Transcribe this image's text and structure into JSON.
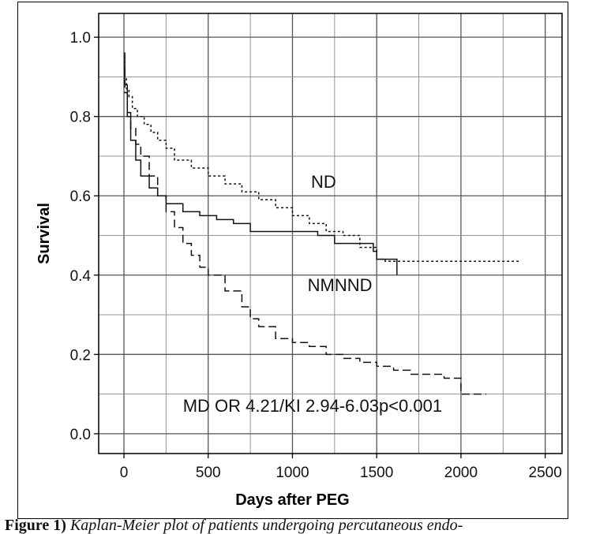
{
  "chart_data": {
    "type": "line",
    "title": "",
    "xlabel": "Days after PEG",
    "ylabel": "Survival",
    "xlim": [
      -150,
      2600
    ],
    "ylim": [
      -0.05,
      1.06
    ],
    "xticks": [
      0,
      500,
      1000,
      1500,
      2000,
      2500
    ],
    "yticks": [
      0.0,
      0.2,
      0.4,
      0.6,
      0.8,
      1.0
    ],
    "xtick_labels": [
      "0",
      "500",
      "1000",
      "1500",
      "2000",
      "2500"
    ],
    "ytick_labels": [
      "0.0",
      "0.2",
      "0.4",
      "0.6",
      "0.8",
      "1.0"
    ],
    "grid": true,
    "series": [
      {
        "name": "ND",
        "style": "dotted",
        "x": [
          0,
          5,
          15,
          30,
          50,
          80,
          120,
          160,
          200,
          250,
          300,
          400,
          500,
          600,
          700,
          800,
          900,
          1000,
          1100,
          1200,
          1300,
          1400,
          1500,
          1550,
          2350
        ],
        "y": [
          0.95,
          0.9,
          0.87,
          0.85,
          0.82,
          0.8,
          0.78,
          0.76,
          0.74,
          0.72,
          0.69,
          0.67,
          0.65,
          0.63,
          0.61,
          0.59,
          0.57,
          0.55,
          0.53,
          0.51,
          0.5,
          0.47,
          0.44,
          0.435,
          0.435
        ]
      },
      {
        "name": "NMNND",
        "style": "solid",
        "x": [
          0,
          5,
          20,
          40,
          70,
          100,
          150,
          200,
          250,
          350,
          450,
          550,
          650,
          750,
          850,
          1000,
          1150,
          1250,
          1400,
          1480,
          1500,
          1620,
          1620
        ],
        "y": [
          0.96,
          0.88,
          0.8,
          0.74,
          0.69,
          0.65,
          0.62,
          0.6,
          0.58,
          0.56,
          0.55,
          0.54,
          0.53,
          0.51,
          0.51,
          0.51,
          0.5,
          0.48,
          0.48,
          0.46,
          0.44,
          0.44,
          0.4
        ]
      },
      {
        "name": "MD",
        "style": "dashed",
        "x": [
          0,
          5,
          20,
          40,
          70,
          100,
          150,
          200,
          250,
          300,
          350,
          400,
          450,
          500,
          600,
          700,
          750,
          800,
          900,
          1000,
          1100,
          1200,
          1300,
          1400,
          1500,
          1600,
          1700,
          1800,
          1900,
          2000,
          2000,
          2050,
          2150
        ],
        "y": [
          0.92,
          0.86,
          0.81,
          0.77,
          0.73,
          0.7,
          0.65,
          0.6,
          0.56,
          0.52,
          0.48,
          0.45,
          0.42,
          0.4,
          0.36,
          0.32,
          0.29,
          0.27,
          0.24,
          0.23,
          0.22,
          0.2,
          0.19,
          0.18,
          0.17,
          0.16,
          0.15,
          0.15,
          0.14,
          0.13,
          0.1,
          0.1,
          0.1
        ]
      }
    ],
    "annotations": [
      {
        "text": "ND",
        "x": 1110,
        "y": 0.62
      },
      {
        "text": "NMNND",
        "x": 1090,
        "y": 0.36
      },
      {
        "text": "MD OR 4.21/KI 2.94-6.03p<0.001",
        "x": 350,
        "y": 0.055
      }
    ]
  },
  "caption": {
    "figure_label": "Figure 1)",
    "text": "Kaplan-Meier plot of patients undergoing percutaneous endo-"
  }
}
